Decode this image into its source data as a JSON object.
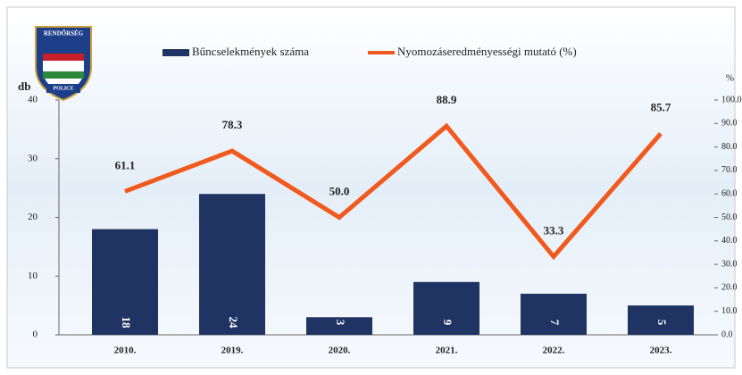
{
  "chart_data": {
    "type": "bar-line",
    "logo": {
      "top": "RENDŐRSÉG",
      "bottom": "POLICE"
    },
    "categories": [
      "2010.",
      "2019.",
      "2020.",
      "2021.",
      "2022.",
      "2023."
    ],
    "series": [
      {
        "name": "Bűncselekmények száma",
        "color": "#1f3462",
        "type": "bar",
        "values": [
          18,
          24,
          3,
          9,
          7,
          5
        ]
      },
      {
        "name": "Nyomozáseredményességi mutató (%)",
        "color": "#f05a1e",
        "type": "line",
        "axis": "y2",
        "values": [
          61.1,
          78.3,
          50.0,
          88.9,
          33.3,
          85.7
        ],
        "value_labels": [
          "61.1",
          "78.3",
          "50.0",
          "88.9",
          "33.3",
          "85.7"
        ]
      }
    ],
    "ylabel": "db",
    "y2label": "%",
    "ylim": [
      0,
      40
    ],
    "yticks": [
      0,
      10,
      20,
      30,
      40
    ],
    "y2lim": [
      0,
      100
    ],
    "y2ticks": [
      {
        "value": 0,
        "label": "0.0"
      },
      {
        "value": 10,
        "label": "10.0"
      },
      {
        "value": 20,
        "label": "20.0"
      },
      {
        "value": 30,
        "label": "30.0"
      },
      {
        "value": 40,
        "label": "40.0"
      },
      {
        "value": 50,
        "label": "50.0"
      },
      {
        "value": 60,
        "label": "60.0"
      },
      {
        "value": 70,
        "label": "70.0"
      },
      {
        "value": 80,
        "label": "80.0"
      },
      {
        "value": 90,
        "label": "90.0"
      },
      {
        "value": 100,
        "label": "100.0"
      }
    ]
  }
}
